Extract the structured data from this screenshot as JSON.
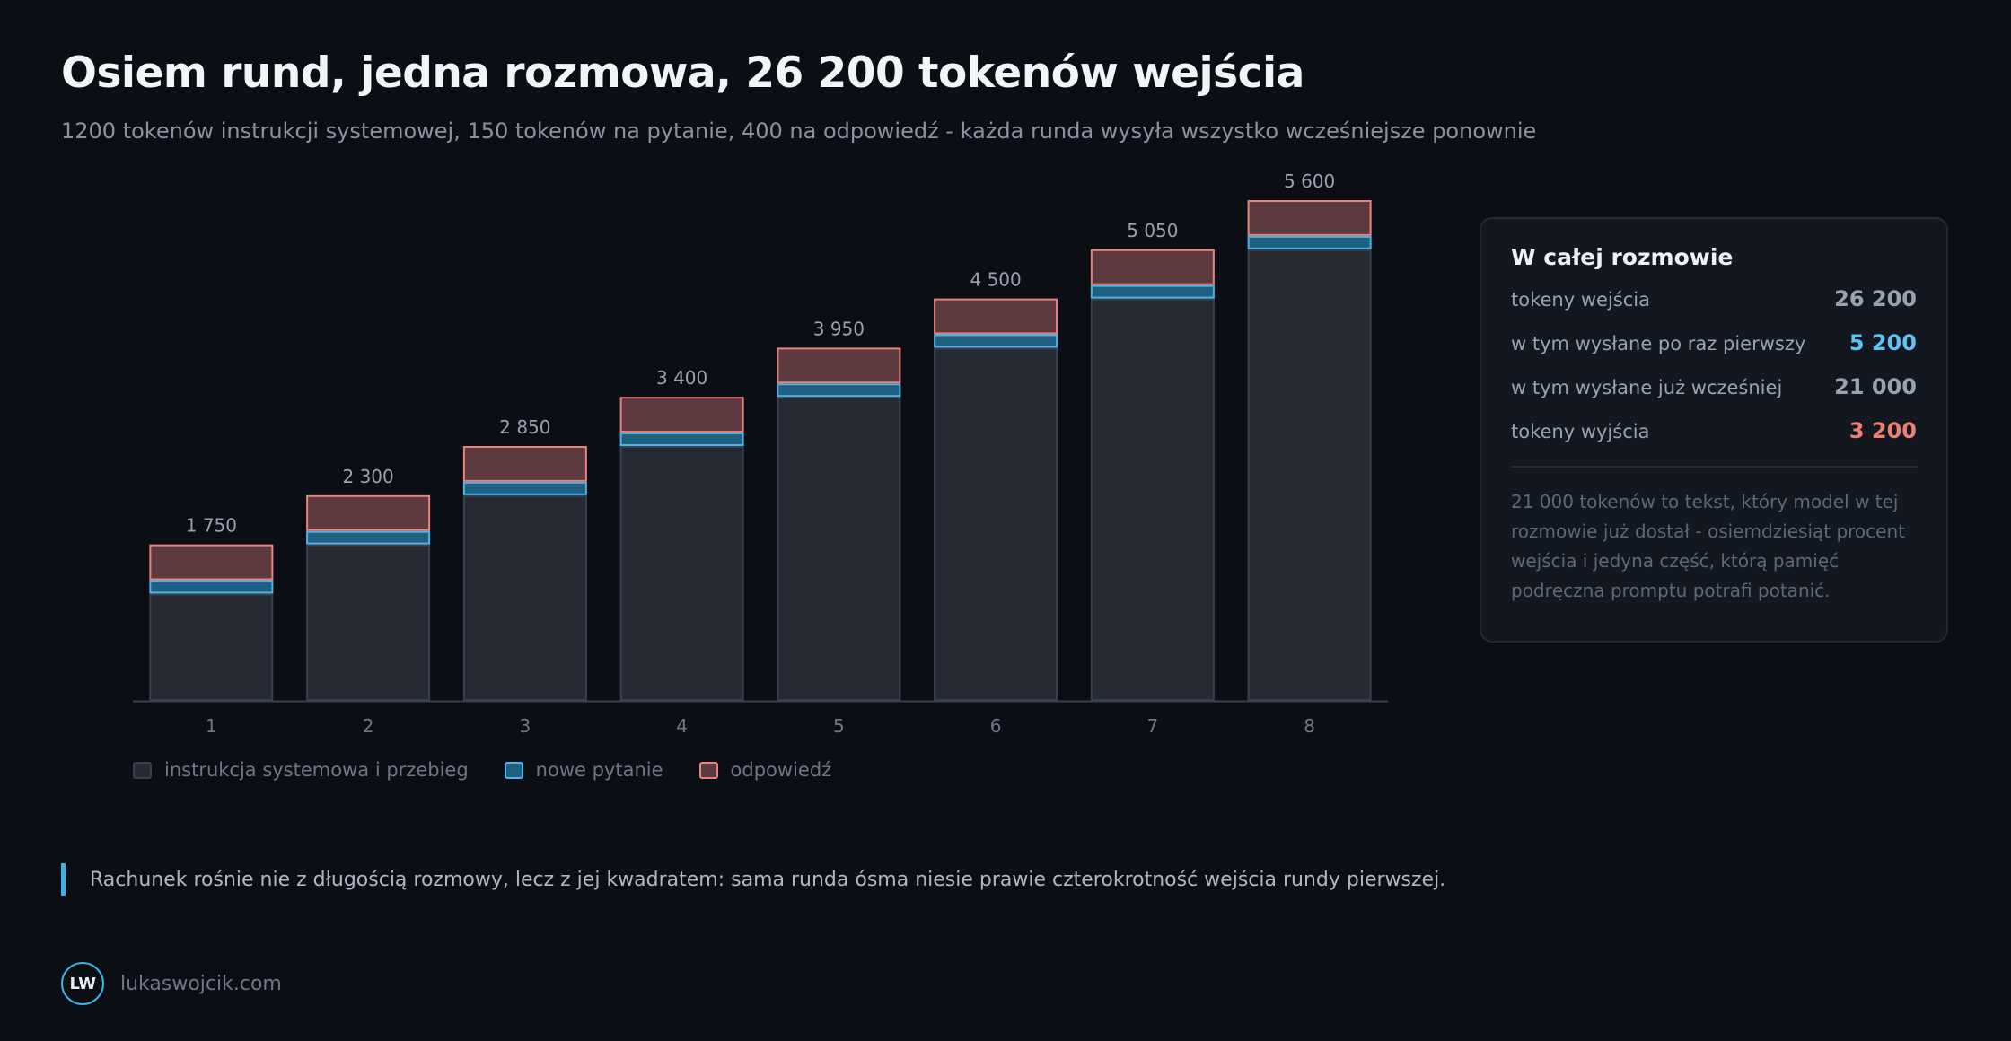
{
  "title": "Osiem rund, jedna rozmowa, 26 200 tokenów wejścia",
  "subtitle": "1200 tokenów instrukcji systemowej, 150 tokenów na pytanie, 400 na odpowiedź - każda runda wysyła wszystko wcześniejsze ponownie",
  "chart_data": {
    "type": "bar",
    "stacked": true,
    "categories": [
      "1",
      "2",
      "3",
      "4",
      "5",
      "6",
      "7",
      "8"
    ],
    "series": [
      {
        "name": "instrukcja systemowa i przebieg",
        "values": [
          1200,
          1750,
          2300,
          2850,
          3400,
          3950,
          4500,
          5050
        ],
        "color": "#262a33",
        "stroke": "#3a4050"
      },
      {
        "name": "nowe pytanie",
        "values": [
          150,
          150,
          150,
          150,
          150,
          150,
          150,
          150
        ],
        "color": "#1f5f82",
        "stroke": "#4fb3e6"
      },
      {
        "name": "odpowiedź",
        "values": [
          400,
          400,
          400,
          400,
          400,
          400,
          400,
          400
        ],
        "color": "#5c3a3e",
        "stroke": "#e9847c"
      }
    ],
    "totals": [
      "1 750",
      "2 300",
      "2 850",
      "3 400",
      "3 950",
      "4 500",
      "5 050",
      "5 600"
    ],
    "ylim": [
      0,
      5600
    ],
    "grid": false,
    "legend": "bottom-left"
  },
  "legend": {
    "base": "instrukcja systemowa i przebieg",
    "question": "nowe pytanie",
    "answer": "odpowiedź"
  },
  "panel": {
    "title": "W całej rozmowie",
    "rows": [
      {
        "label": "tokeny wejścia",
        "value": "26 200"
      },
      {
        "label": "w tym wysłane po raz pierwszy",
        "value": "5 200"
      },
      {
        "label": "w tym wysłane już wcześniej",
        "value": "21 000"
      },
      {
        "label": "tokeny wyjścia",
        "value": "3 200"
      }
    ],
    "note": "21 000 tokenów to tekst, który model w tej rozmowie już dostał - osiemdziesiąt procent wejścia i jedyna część, którą pamięć podręczna promptu potrafi potanić."
  },
  "callout": "Rachunek rośnie nie z długością rozmowy, lecz z jej kwadratem: sama runda ósma niesie prawie czterokrotność wejścia rundy pierwszej.",
  "footer": {
    "logo": "LW",
    "site": "lukaswojcik.com"
  },
  "colors": {
    "background": "#0b0e14",
    "accent": "#3fb0e6",
    "question": "#4fb3e6",
    "answer": "#e9847c"
  }
}
